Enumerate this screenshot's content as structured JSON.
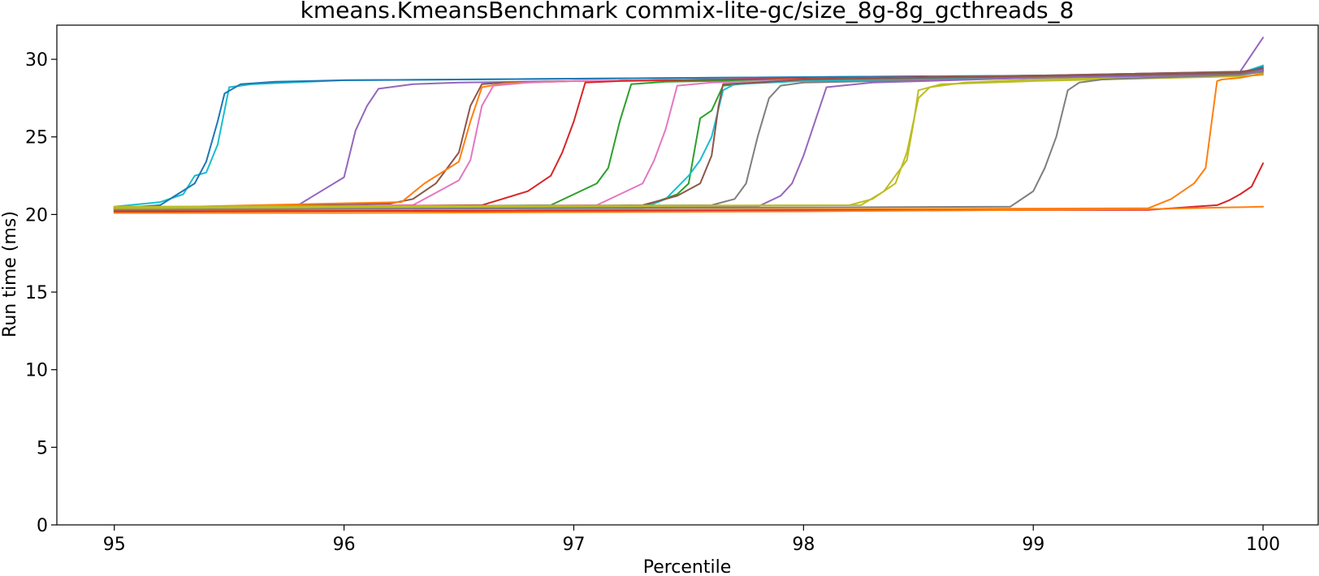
{
  "chart_data": {
    "type": "line",
    "title": "kmeans.KmeansBenchmark commix-lite-gc/size_8g-8g_gcthreads_8",
    "xlabel": "Percentile",
    "ylabel": "Run time (ms)",
    "xlim": [
      94.75,
      100.24
    ],
    "ylim": [
      0,
      32.2
    ],
    "xticks": [
      95,
      96,
      97,
      98,
      99,
      100
    ],
    "yticks": [
      0,
      5,
      10,
      15,
      20,
      25,
      30
    ],
    "grid": false,
    "series": [
      {
        "color": "#17becf",
        "x": [
          95,
          95.2,
          95.3,
          95.35,
          95.4,
          95.45,
          95.5,
          95.6,
          96,
          97,
          98,
          99,
          99.5,
          99.9,
          100
        ],
        "y": [
          20.5,
          20.8,
          21.3,
          22.5,
          22.7,
          24.5,
          28.2,
          28.4,
          28.65,
          28.75,
          28.85,
          28.95,
          29.0,
          29.1,
          29.6
        ]
      },
      {
        "color": "#1f77b4",
        "x": [
          95,
          95.2,
          95.35,
          95.4,
          95.45,
          95.48,
          95.55,
          95.7,
          96,
          97,
          98,
          99,
          99.5,
          99.9,
          100
        ],
        "y": [
          20.4,
          20.6,
          22.0,
          23.4,
          26.0,
          27.8,
          28.4,
          28.55,
          28.65,
          28.75,
          28.85,
          28.95,
          29.0,
          29.1,
          29.5
        ]
      },
      {
        "color": "#9467bd",
        "x": [
          95,
          95.8,
          96.0,
          96.05,
          96.1,
          96.15,
          96.3,
          96.5,
          97,
          98,
          99,
          99.9,
          100
        ],
        "y": [
          20.4,
          20.6,
          22.4,
          25.4,
          27.0,
          28.1,
          28.4,
          28.5,
          28.6,
          28.75,
          28.95,
          29.2,
          31.4
        ]
      },
      {
        "color": "#8c564b",
        "x": [
          95,
          96.2,
          96.3,
          96.4,
          96.5,
          96.55,
          96.6,
          96.7,
          97,
          98,
          99,
          99.9,
          100
        ],
        "y": [
          20.4,
          20.7,
          21.0,
          22.0,
          24.0,
          27.0,
          28.4,
          28.5,
          28.6,
          28.75,
          28.95,
          29.2,
          29.4
        ]
      },
      {
        "color": "#ff7f0e",
        "x": [
          95,
          96.25,
          96.35,
          96.5,
          96.55,
          96.6,
          96.7,
          97,
          98,
          99,
          99.9,
          100
        ],
        "y": [
          20.4,
          20.8,
          22.0,
          23.4,
          26.0,
          28.2,
          28.45,
          28.6,
          28.75,
          28.9,
          29.1,
          29.3
        ]
      },
      {
        "color": "#e377c2",
        "x": [
          95,
          96.3,
          96.4,
          96.5,
          96.55,
          96.6,
          96.65,
          96.8,
          97,
          98,
          99,
          99.9,
          100
        ],
        "y": [
          20.4,
          20.6,
          21.4,
          22.2,
          23.5,
          27.0,
          28.3,
          28.5,
          28.6,
          28.75,
          28.9,
          29.1,
          29.3
        ]
      },
      {
        "color": "#d62728",
        "x": [
          95,
          96.6,
          96.8,
          96.9,
          96.95,
          97.0,
          97.05,
          97.2,
          98,
          99,
          99.9,
          100
        ],
        "y": [
          20.4,
          20.6,
          21.5,
          22.5,
          24.0,
          26.0,
          28.5,
          28.6,
          28.75,
          28.9,
          29.1,
          29.3
        ]
      },
      {
        "color": "#2ca02c",
        "x": [
          95,
          96.9,
          97.0,
          97.1,
          97.15,
          97.2,
          97.25,
          97.4,
          98,
          99,
          99.9,
          100
        ],
        "y": [
          20.4,
          20.6,
          21.3,
          22.0,
          23.0,
          26.0,
          28.4,
          28.55,
          28.7,
          28.9,
          29.1,
          29.3
        ]
      },
      {
        "color": "#e377c2",
        "x": [
          95,
          97.1,
          97.2,
          97.3,
          97.35,
          97.4,
          97.45,
          97.6,
          98,
          99,
          99.9,
          100
        ],
        "y": [
          20.4,
          20.6,
          21.3,
          22.0,
          23.5,
          25.5,
          28.3,
          28.5,
          28.7,
          28.9,
          29.1,
          29.3
        ]
      },
      {
        "color": "#2ca02c",
        "x": [
          95,
          97.3,
          97.45,
          97.5,
          97.55,
          97.6,
          97.65,
          97.8,
          98,
          99,
          99.9,
          100
        ],
        "y": [
          20.4,
          20.5,
          21.3,
          22.0,
          26.2,
          26.7,
          28.3,
          28.5,
          28.7,
          28.9,
          29.1,
          29.3
        ]
      },
      {
        "color": "#17becf",
        "x": [
          95,
          97.3,
          97.4,
          97.5,
          97.55,
          97.6,
          97.65,
          97.7,
          98,
          99,
          99.9,
          100
        ],
        "y": [
          20.4,
          20.4,
          21.0,
          22.5,
          23.5,
          25.0,
          28.0,
          28.4,
          28.6,
          28.8,
          29.0,
          29.2
        ]
      },
      {
        "color": "#8c564b",
        "x": [
          95,
          97.3,
          97.45,
          97.55,
          97.6,
          97.63,
          97.65,
          97.8,
          98,
          99,
          99.9,
          100
        ],
        "y": [
          20.4,
          20.6,
          21.2,
          22.0,
          23.8,
          27.0,
          28.4,
          28.5,
          28.7,
          28.9,
          29.1,
          29.3
        ]
      },
      {
        "color": "#7f7f7f",
        "x": [
          95,
          97.6,
          97.7,
          97.75,
          97.8,
          97.85,
          97.9,
          98.0,
          99,
          99.9,
          100
        ],
        "y": [
          20.4,
          20.6,
          21.0,
          22.0,
          25.0,
          27.5,
          28.3,
          28.5,
          28.8,
          29.0,
          29.3
        ]
      },
      {
        "color": "#9467bd",
        "x": [
          95,
          97.8,
          97.9,
          97.95,
          98.0,
          98.05,
          98.1,
          98.3,
          99,
          99.9,
          100
        ],
        "y": [
          20.3,
          20.5,
          21.2,
          22.0,
          23.8,
          26.0,
          28.2,
          28.5,
          28.8,
          29.0,
          29.3
        ]
      },
      {
        "color": "#bcbd22",
        "x": [
          95,
          98.2,
          98.3,
          98.4,
          98.45,
          98.5,
          98.55,
          98.7,
          99,
          99.9,
          100
        ],
        "y": [
          20.5,
          20.6,
          21.0,
          22.0,
          24.0,
          27.5,
          28.2,
          28.5,
          28.7,
          28.9,
          29.0
        ]
      },
      {
        "color": "#bcbd22",
        "x": [
          95,
          98.25,
          98.35,
          98.45,
          98.48,
          98.5,
          98.6,
          99,
          99.9,
          100
        ],
        "y": [
          20.4,
          20.6,
          21.5,
          23.5,
          26.0,
          28.0,
          28.4,
          28.6,
          28.9,
          29.0
        ]
      },
      {
        "color": "#7f7f7f",
        "x": [
          95,
          98.9,
          99.0,
          99.05,
          99.1,
          99.15,
          99.2,
          99.3,
          99.5,
          99.9,
          100
        ],
        "y": [
          20.3,
          20.5,
          21.5,
          23.0,
          25.0,
          28.0,
          28.5,
          28.7,
          28.8,
          29.0,
          29.2
        ]
      },
      {
        "color": "#ff7f0e",
        "x": [
          95,
          99.5,
          99.6,
          99.7,
          99.75,
          99.8,
          99.82,
          99.9,
          100
        ],
        "y": [
          20.2,
          20.4,
          21.0,
          22.0,
          23.0,
          28.6,
          28.7,
          28.8,
          29.1
        ]
      },
      {
        "color": "#d62728",
        "x": [
          95,
          99.5,
          99.7,
          99.8,
          99.85,
          99.9,
          99.95,
          100
        ],
        "y": [
          20.2,
          20.3,
          20.5,
          20.6,
          20.9,
          21.3,
          21.8,
          23.3
        ]
      },
      {
        "color": "#ff7f0e",
        "x": [
          95,
          96,
          97,
          98,
          99,
          99.5,
          100
        ],
        "y": [
          20.1,
          20.1,
          20.15,
          20.2,
          20.3,
          20.35,
          20.5
        ]
      }
    ]
  }
}
